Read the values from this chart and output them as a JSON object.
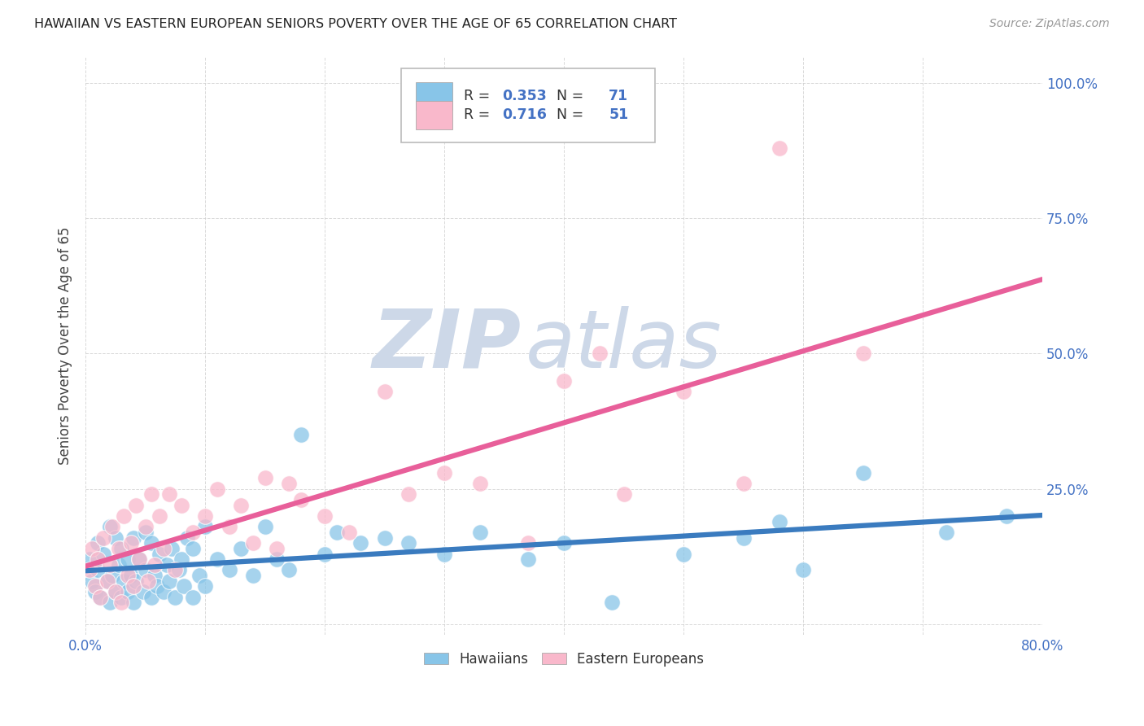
{
  "title": "HAWAIIAN VS EASTERN EUROPEAN SENIORS POVERTY OVER THE AGE OF 65 CORRELATION CHART",
  "source": "Source: ZipAtlas.com",
  "ylabel": "Seniors Poverty Over the Age of 65",
  "xlim": [
    0.0,
    0.8
  ],
  "ylim": [
    -0.02,
    1.05
  ],
  "hawaiians_R": 0.353,
  "hawaiians_N": 71,
  "eastern_europeans_R": 0.716,
  "eastern_europeans_N": 51,
  "hawaiian_color": "#88c5e8",
  "eastern_color": "#f9b8cb",
  "hawaiian_line_color": "#3a7bbf",
  "eastern_line_color": "#e85f9a",
  "background_color": "#ffffff",
  "watermark_zip": "ZIP",
  "watermark_atlas": "atlas",
  "watermark_color": "#cdd8e8",
  "hawaiians_x": [
    0.003,
    0.005,
    0.008,
    0.01,
    0.01,
    0.012,
    0.015,
    0.018,
    0.02,
    0.02,
    0.022,
    0.025,
    0.025,
    0.028,
    0.03,
    0.03,
    0.032,
    0.035,
    0.035,
    0.038,
    0.04,
    0.04,
    0.042,
    0.045,
    0.048,
    0.05,
    0.05,
    0.055,
    0.055,
    0.058,
    0.06,
    0.062,
    0.065,
    0.068,
    0.07,
    0.072,
    0.075,
    0.078,
    0.08,
    0.082,
    0.085,
    0.09,
    0.09,
    0.095,
    0.1,
    0.1,
    0.11,
    0.12,
    0.13,
    0.14,
    0.15,
    0.16,
    0.17,
    0.18,
    0.2,
    0.21,
    0.23,
    0.25,
    0.27,
    0.3,
    0.33,
    0.37,
    0.4,
    0.44,
    0.5,
    0.55,
    0.58,
    0.6,
    0.65,
    0.72,
    0.77
  ],
  "hawaiians_y": [
    0.12,
    0.08,
    0.06,
    0.1,
    0.15,
    0.05,
    0.13,
    0.08,
    0.04,
    0.18,
    0.09,
    0.06,
    0.16,
    0.11,
    0.05,
    0.14,
    0.08,
    0.06,
    0.12,
    0.09,
    0.04,
    0.16,
    0.08,
    0.12,
    0.06,
    0.1,
    0.17,
    0.05,
    0.15,
    0.09,
    0.07,
    0.13,
    0.06,
    0.11,
    0.08,
    0.14,
    0.05,
    0.1,
    0.12,
    0.07,
    0.16,
    0.05,
    0.14,
    0.09,
    0.07,
    0.18,
    0.12,
    0.1,
    0.14,
    0.09,
    0.18,
    0.12,
    0.1,
    0.35,
    0.13,
    0.17,
    0.15,
    0.16,
    0.15,
    0.13,
    0.17,
    0.12,
    0.15,
    0.04,
    0.13,
    0.16,
    0.19,
    0.1,
    0.28,
    0.17,
    0.2
  ],
  "eastern_x": [
    0.003,
    0.005,
    0.008,
    0.01,
    0.012,
    0.015,
    0.018,
    0.02,
    0.022,
    0.025,
    0.028,
    0.03,
    0.032,
    0.035,
    0.038,
    0.04,
    0.042,
    0.045,
    0.05,
    0.052,
    0.055,
    0.058,
    0.062,
    0.065,
    0.07,
    0.075,
    0.08,
    0.09,
    0.1,
    0.11,
    0.12,
    0.13,
    0.14,
    0.15,
    0.16,
    0.17,
    0.18,
    0.2,
    0.22,
    0.25,
    0.27,
    0.3,
    0.33,
    0.37,
    0.4,
    0.43,
    0.45,
    0.5,
    0.55,
    0.58,
    0.65
  ],
  "eastern_y": [
    0.1,
    0.14,
    0.07,
    0.12,
    0.05,
    0.16,
    0.08,
    0.11,
    0.18,
    0.06,
    0.14,
    0.04,
    0.2,
    0.09,
    0.15,
    0.07,
    0.22,
    0.12,
    0.18,
    0.08,
    0.24,
    0.11,
    0.2,
    0.14,
    0.24,
    0.1,
    0.22,
    0.17,
    0.2,
    0.25,
    0.18,
    0.22,
    0.15,
    0.27,
    0.14,
    0.26,
    0.23,
    0.2,
    0.17,
    0.43,
    0.24,
    0.28,
    0.26,
    0.15,
    0.45,
    0.5,
    0.24,
    0.43,
    0.26,
    0.88,
    0.5
  ]
}
